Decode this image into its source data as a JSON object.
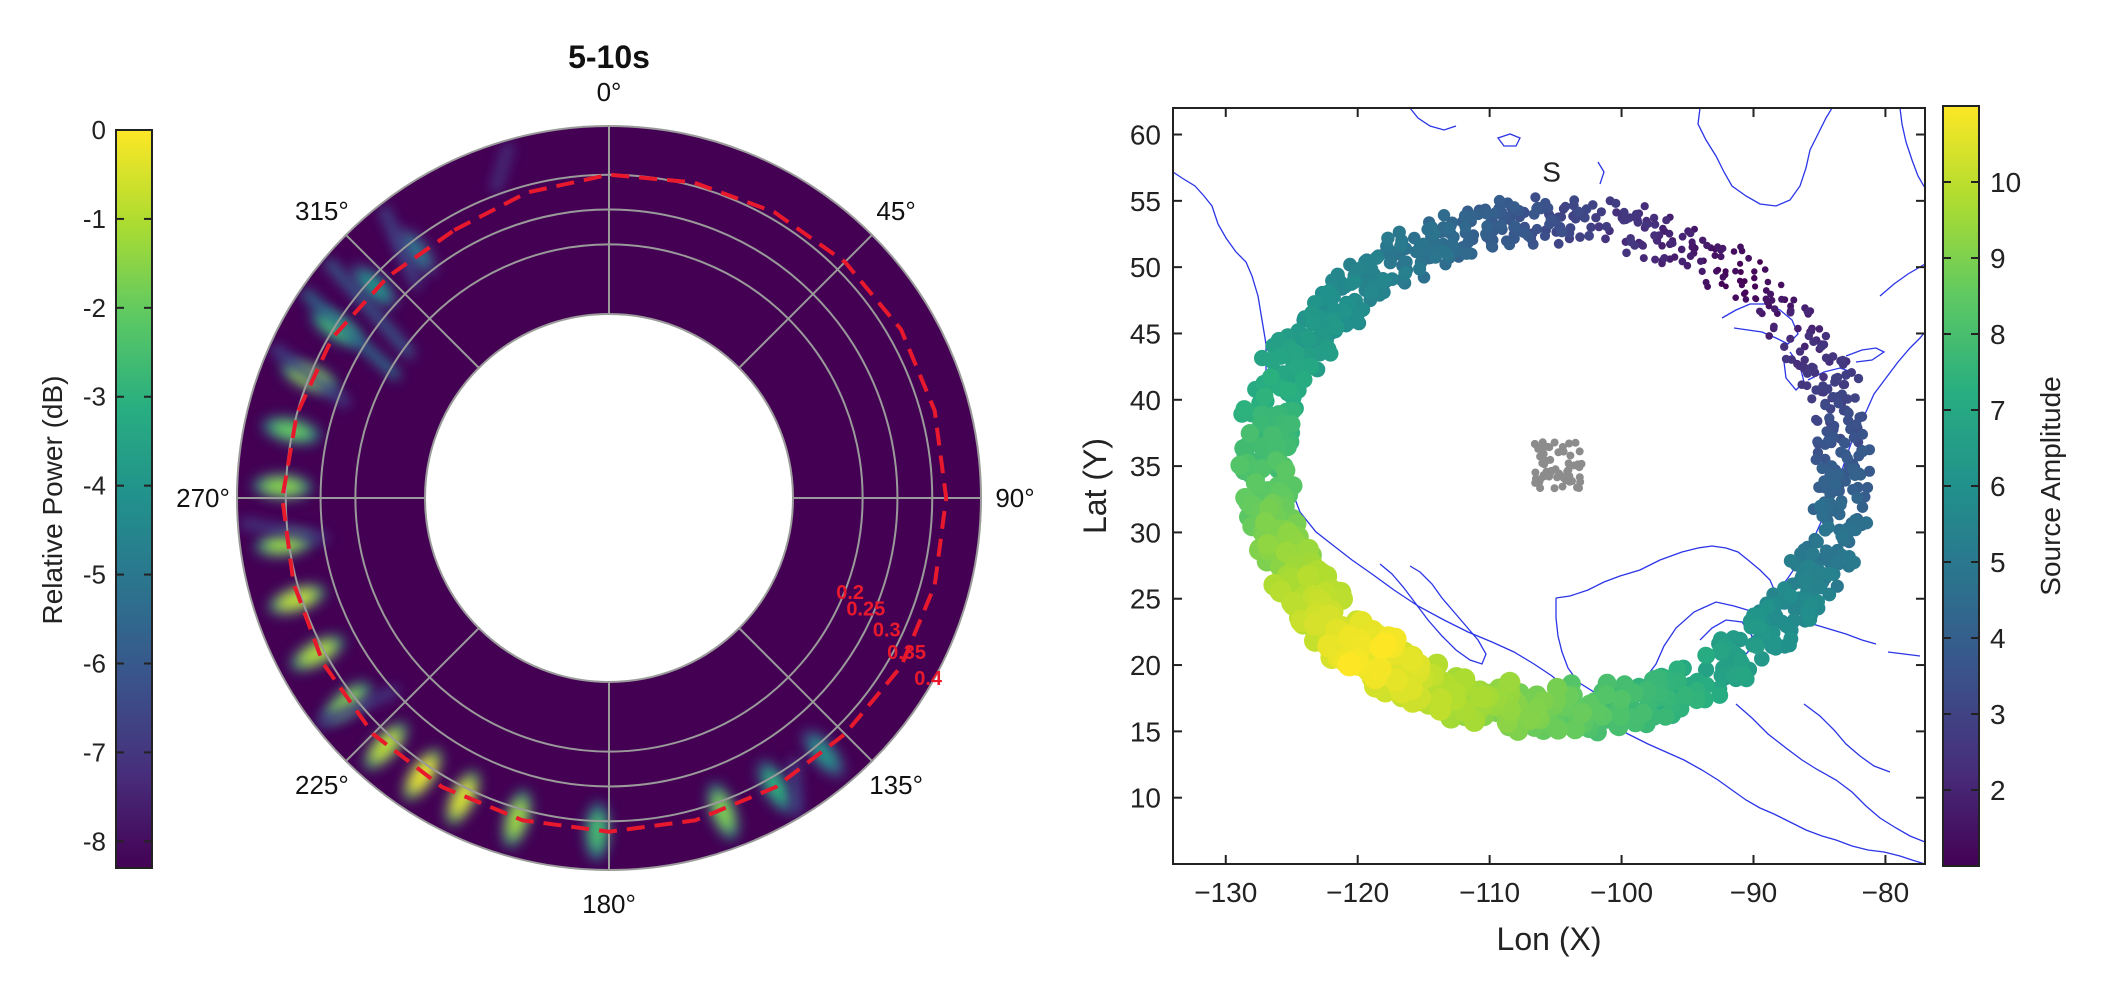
{
  "chart_data": [
    {
      "type": "polar-heatmap",
      "title": "5-10s",
      "theta_labels": [
        "0°",
        "45°",
        "90°",
        "135°",
        "180°",
        "225°",
        "270°",
        "315°"
      ],
      "radial_labels": [
        "0.2",
        "0.25",
        "0.3",
        "0.35",
        "0.4"
      ],
      "rlim": [
        0.15,
        0.42
      ],
      "radial_rings": [
        0.25,
        0.3,
        0.35
      ],
      "grid": true,
      "colorbar": {
        "label": "Relative Power (dB)",
        "ticks": [
          "0",
          "-1",
          "-2",
          "-3",
          "-4",
          "-5",
          "-6",
          "-7",
          "-8"
        ],
        "range": [
          -8.3,
          0
        ]
      },
      "reference_curve": {
        "style": "red-dashed",
        "points": [
          {
            "theta": 330,
            "r": 0.33
          },
          {
            "theta": 345,
            "r": 0.34
          },
          {
            "theta": 0,
            "r": 0.35
          },
          {
            "theta": 15,
            "r": 0.355
          },
          {
            "theta": 30,
            "r": 0.36
          },
          {
            "theta": 45,
            "r": 0.365
          },
          {
            "theta": 60,
            "r": 0.37
          },
          {
            "theta": 75,
            "r": 0.37
          },
          {
            "theta": 90,
            "r": 0.37
          },
          {
            "theta": 105,
            "r": 0.37
          },
          {
            "theta": 120,
            "r": 0.37
          },
          {
            "theta": 135,
            "r": 0.365
          },
          {
            "theta": 150,
            "r": 0.365
          },
          {
            "theta": 165,
            "r": 0.365
          },
          {
            "theta": 180,
            "r": 0.365
          },
          {
            "theta": 195,
            "r": 0.365
          },
          {
            "theta": 210,
            "r": 0.365
          },
          {
            "theta": 225,
            "r": 0.365
          },
          {
            "theta": 240,
            "r": 0.36
          },
          {
            "theta": 255,
            "r": 0.355
          },
          {
            "theta": 270,
            "r": 0.355
          },
          {
            "theta": 285,
            "r": 0.35
          },
          {
            "theta": 300,
            "r": 0.345
          },
          {
            "theta": 315,
            "r": 0.335
          }
        ]
      },
      "energy_arc": [
        {
          "theta": 182,
          "r": 0.365,
          "power": -2.5
        },
        {
          "theta": 196,
          "r": 0.365,
          "power": -1.2
        },
        {
          "theta": 206,
          "r": 0.365,
          "power": -0.4
        },
        {
          "theta": 214,
          "r": 0.365,
          "power": -0.2
        },
        {
          "theta": 222,
          "r": 0.365,
          "power": -0.8
        },
        {
          "theta": 232,
          "r": 0.363,
          "power": -1.5
        },
        {
          "theta": 242,
          "r": 0.36,
          "power": -1.0
        },
        {
          "theta": 252,
          "r": 0.357,
          "power": -0.8
        },
        {
          "theta": 262,
          "r": 0.356,
          "power": -1.3
        },
        {
          "theta": 272,
          "r": 0.355,
          "power": -1.5
        },
        {
          "theta": 282,
          "r": 0.352,
          "power": -2.0
        },
        {
          "theta": 292,
          "r": 0.35,
          "power": -1.2
        },
        {
          "theta": 302,
          "r": 0.347,
          "power": -2.5
        },
        {
          "theta": 312,
          "r": 0.34,
          "power": -4.0
        },
        {
          "theta": 322,
          "r": 0.335,
          "power": -5.0
        },
        {
          "theta": 160,
          "r": 0.365,
          "power": -1.6
        },
        {
          "theta": 150,
          "r": 0.365,
          "power": -3.0
        },
        {
          "theta": 140,
          "r": 0.365,
          "power": -4.0
        }
      ]
    },
    {
      "type": "scatter",
      "xlabel": "Lon (X)",
      "ylabel": "Lat (Y)",
      "xlim": [
        -134,
        -77
      ],
      "ylim": [
        5,
        62
      ],
      "xticks": [
        -130,
        -120,
        -110,
        -100,
        -90,
        -80
      ],
      "yticks": [
        10,
        15,
        20,
        25,
        30,
        35,
        40,
        45,
        50,
        55,
        60
      ],
      "annotation": {
        "text": "S",
        "x": -105.3,
        "y": 57.2
      },
      "colorbar": {
        "label": "Source Amplitude",
        "ticks": [
          2,
          3,
          4,
          5,
          6,
          7,
          8,
          9,
          10
        ],
        "range": [
          1,
          11
        ]
      },
      "ring": {
        "center_lon": -105,
        "center_lat": 35,
        "radius_lon": 22,
        "radius_lat": 18.5,
        "point_count": 1200
      },
      "center_cluster": {
        "lon": -104.8,
        "lat": 35.1,
        "half_width": 1.8,
        "color": "#8c8c8c"
      }
    }
  ]
}
